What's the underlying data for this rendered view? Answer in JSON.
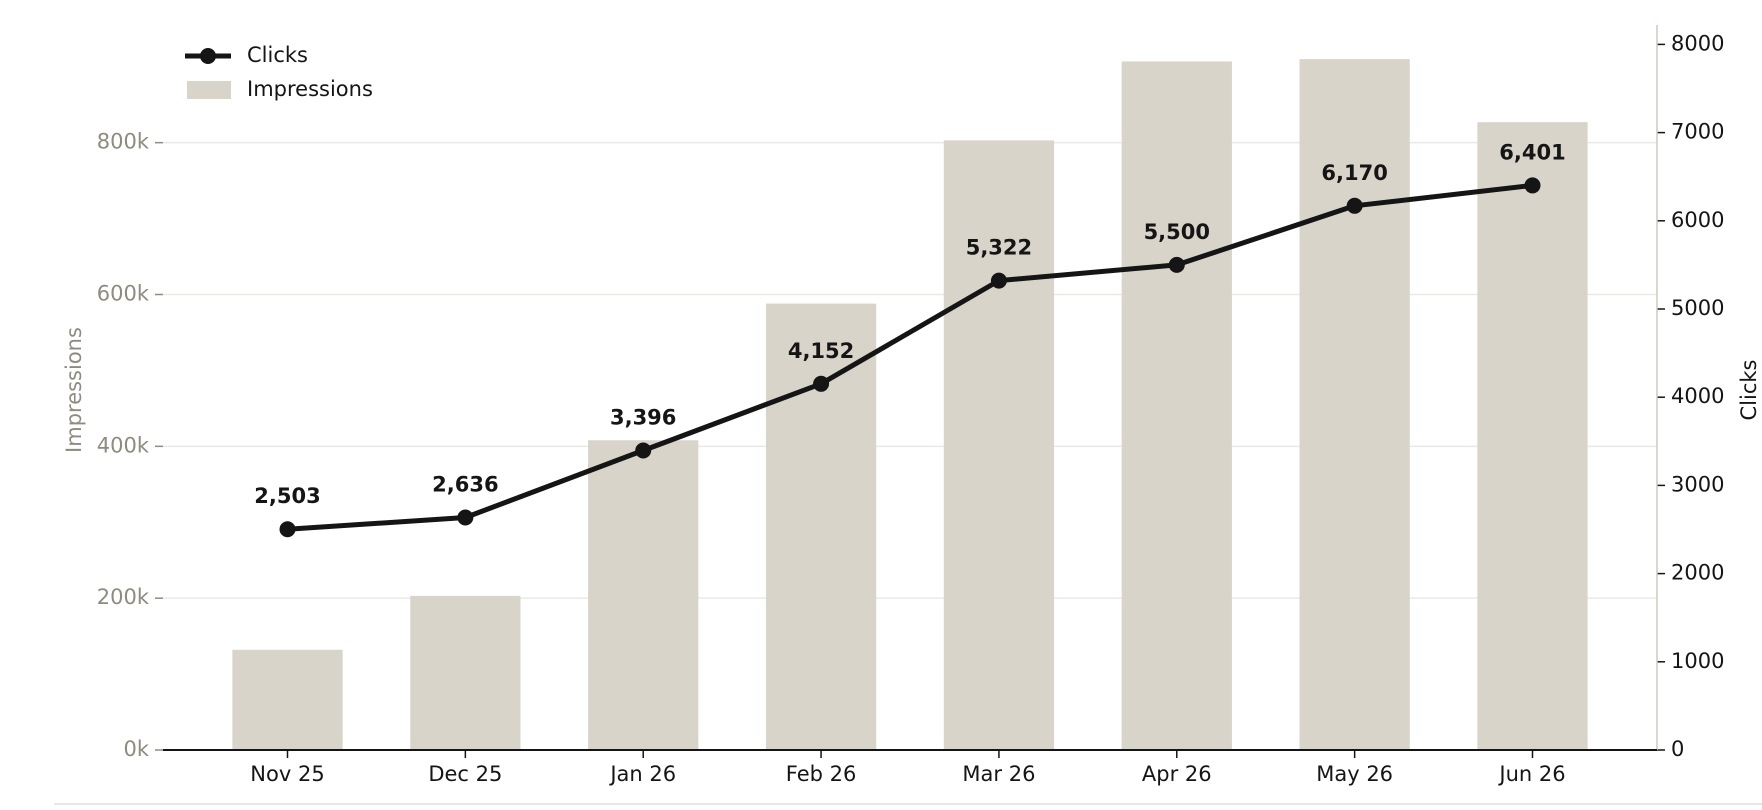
{
  "chart_data": {
    "type": "combo",
    "categories": [
      "Nov 25",
      "Dec 25",
      "Jan 26",
      "Feb 26",
      "Mar 26",
      "Apr 26",
      "May 26",
      "Jun 26"
    ],
    "series": [
      {
        "name": "Clicks",
        "type": "line",
        "axis": "y2",
        "color": "#151515",
        "values": [
          2503,
          2636,
          3396,
          4152,
          5322,
          5500,
          6170,
          6401
        ],
        "value_labels": [
          "2,503",
          "2,636",
          "3,396",
          "4,152",
          "5,322",
          "5,500",
          "6,170",
          "6,401"
        ]
      },
      {
        "name": "Impressions",
        "type": "bar",
        "color": "#d9d4ca",
        "values": [
          132000,
          203000,
          408000,
          588000,
          803000,
          907000,
          910000,
          827000
        ]
      }
    ],
    "ylabel": "Impressions",
    "y2label": "Clicks",
    "ylim": [
      0,
      955000
    ],
    "yticks": [
      {
        "value": 0,
        "label": "0k"
      },
      {
        "value": 200000,
        "label": "200k"
      },
      {
        "value": 400000,
        "label": "400k"
      },
      {
        "value": 600000,
        "label": "600k"
      },
      {
        "value": 800000,
        "label": "800k"
      }
    ],
    "y2lim": [
      0,
      8220
    ],
    "y2ticks": [
      0,
      1000,
      2000,
      3000,
      4000,
      5000,
      6000,
      7000,
      8000
    ],
    "grid": true,
    "legend": "upper left"
  }
}
